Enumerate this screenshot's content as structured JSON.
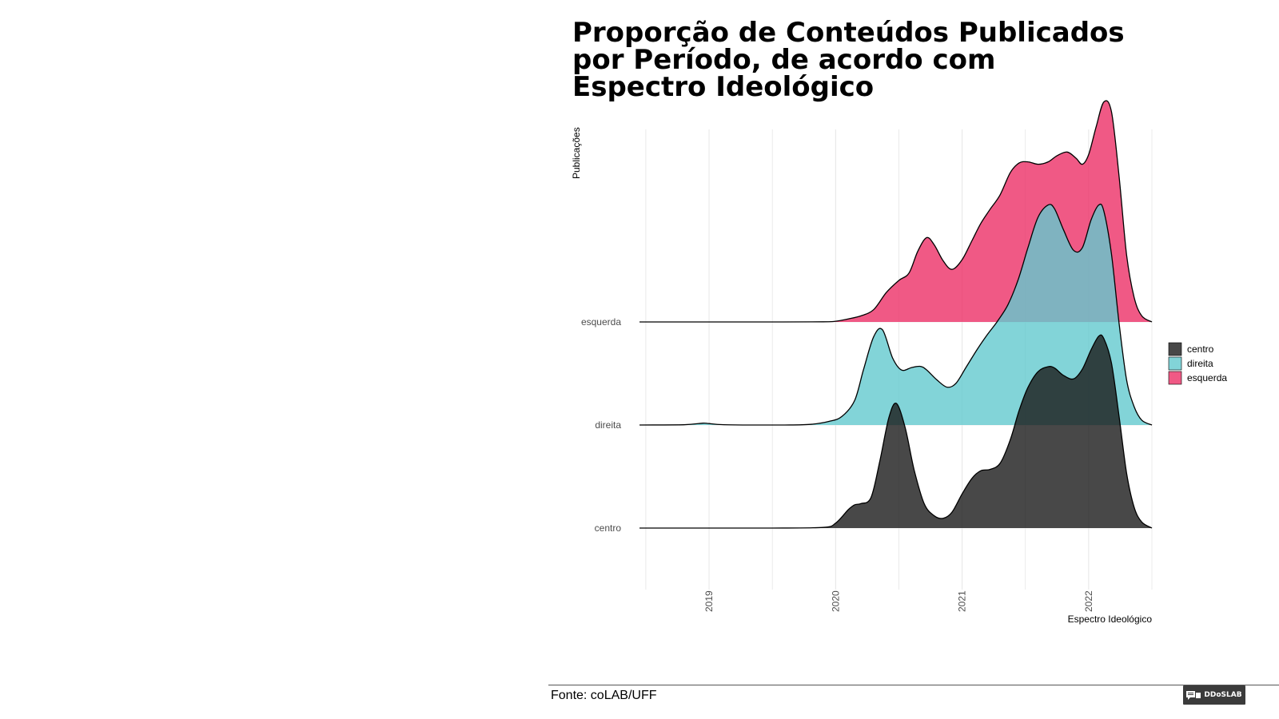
{
  "title": "Proporção de Conteúdos Publicados\n por Período, de acordo com\n Espectro Ideológico",
  "source": "Fonte: coLAB/UFF",
  "logo_text": "DDoSLAB",
  "chart_data": {
    "type": "area",
    "subtype": "ridgeline",
    "ylabel": "Publicações",
    "xlabel": "Espectro Ideológico",
    "xlim": [
      2018.45,
      2022.5
    ],
    "xticks": [
      2019,
      2020,
      2021,
      2022
    ],
    "categories": [
      "centro",
      "direita",
      "esquerda"
    ],
    "grid": true,
    "legend_position": "right",
    "series": [
      {
        "name": "centro",
        "color": "#1a1a1a",
        "x": [
          2018.45,
          2019.0,
          2019.5,
          2019.9,
          2020.0,
          2020.1,
          2020.15,
          2020.2,
          2020.28,
          2020.35,
          2020.42,
          2020.48,
          2020.55,
          2020.62,
          2020.7,
          2020.78,
          2020.85,
          2020.92,
          2021.0,
          2021.08,
          2021.15,
          2021.22,
          2021.3,
          2021.38,
          2021.45,
          2021.52,
          2021.6,
          2021.68,
          2021.73,
          2021.8,
          2021.88,
          2021.95,
          2022.02,
          2022.08,
          2022.12,
          2022.18,
          2022.24,
          2022.3,
          2022.36,
          2022.42,
          2022.5
        ],
        "y": [
          0,
          0,
          0,
          0.005,
          0.04,
          0.15,
          0.19,
          0.2,
          0.25,
          0.55,
          0.9,
          1.02,
          0.82,
          0.48,
          0.2,
          0.1,
          0.08,
          0.13,
          0.28,
          0.41,
          0.47,
          0.48,
          0.53,
          0.72,
          0.96,
          1.15,
          1.28,
          1.32,
          1.31,
          1.25,
          1.22,
          1.3,
          1.46,
          1.57,
          1.55,
          1.35,
          0.92,
          0.45,
          0.17,
          0.05,
          0.0
        ]
      },
      {
        "name": "direita",
        "color": "#63c9ce",
        "x": [
          2018.45,
          2018.8,
          2018.95,
          2019.0,
          2019.1,
          2019.3,
          2019.6,
          2019.8,
          2019.95,
          2020.05,
          2020.15,
          2020.22,
          2020.3,
          2020.37,
          2020.45,
          2020.52,
          2020.6,
          2020.67,
          2020.72,
          2020.8,
          2020.88,
          2020.95,
          2021.03,
          2021.12,
          2021.2,
          2021.28,
          2021.36,
          2021.44,
          2021.52,
          2021.6,
          2021.68,
          2021.73,
          2021.8,
          2021.88,
          2021.95,
          2022.02,
          2022.08,
          2022.12,
          2022.18,
          2022.24,
          2022.3,
          2022.36,
          2022.42,
          2022.5
        ],
        "y": [
          0,
          0.002,
          0.015,
          0.012,
          0.003,
          0,
          0,
          0.005,
          0.03,
          0.07,
          0.2,
          0.45,
          0.72,
          0.78,
          0.55,
          0.45,
          0.47,
          0.48,
          0.45,
          0.37,
          0.31,
          0.34,
          0.47,
          0.62,
          0.74,
          0.85,
          0.98,
          1.18,
          1.45,
          1.7,
          1.8,
          1.77,
          1.6,
          1.43,
          1.45,
          1.68,
          1.8,
          1.75,
          1.4,
          0.84,
          0.37,
          0.15,
          0.04,
          0.0
        ]
      },
      {
        "name": "esquerda",
        "color": "#ec2f66",
        "x": [
          2018.45,
          2019.0,
          2019.5,
          2019.9,
          2020.0,
          2020.1,
          2020.2,
          2020.3,
          2020.4,
          2020.5,
          2020.58,
          2020.65,
          2020.72,
          2020.78,
          2020.85,
          2020.92,
          2021.0,
          2021.08,
          2021.15,
          2021.22,
          2021.3,
          2021.38,
          2021.45,
          2021.52,
          2021.6,
          2021.68,
          2021.75,
          2021.83,
          2021.9,
          2021.95,
          2022.0,
          2022.06,
          2022.12,
          2022.18,
          2022.24,
          2022.3,
          2022.36,
          2022.42,
          2022.5
        ],
        "y": [
          0,
          0,
          0,
          0.001,
          0.006,
          0.025,
          0.05,
          0.1,
          0.24,
          0.34,
          0.4,
          0.58,
          0.69,
          0.63,
          0.5,
          0.43,
          0.51,
          0.67,
          0.81,
          0.92,
          1.04,
          1.22,
          1.3,
          1.31,
          1.29,
          1.31,
          1.36,
          1.39,
          1.34,
          1.29,
          1.37,
          1.6,
          1.8,
          1.72,
          1.2,
          0.55,
          0.2,
          0.05,
          0.0
        ]
      }
    ]
  }
}
